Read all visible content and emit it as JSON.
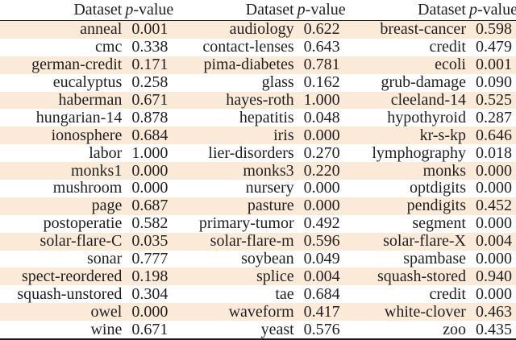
{
  "table": {
    "header": {
      "dataset": "Dataset",
      "pvalue_prefix": "p",
      "pvalue_suffix": "-value"
    },
    "rows": [
      [
        "anneal",
        "0.001",
        "audiology",
        "0.622",
        "breast-cancer",
        "0.598"
      ],
      [
        "cmc",
        "0.338",
        "contact-lenses",
        "0.643",
        "credit",
        "0.479"
      ],
      [
        "german-credit",
        "0.171",
        "pima-diabetes",
        "0.781",
        "ecoli",
        "0.001"
      ],
      [
        "eucalyptus",
        "0.258",
        "glass",
        "0.162",
        "grub-damage",
        "0.090"
      ],
      [
        "haberman",
        "0.671",
        "hayes-roth",
        "1.000",
        "cleeland-14",
        "0.525"
      ],
      [
        "hungarian-14",
        "0.878",
        "hepatitis",
        "0.048",
        "hypothyroid",
        "0.287"
      ],
      [
        "ionosphere",
        "0.684",
        "iris",
        "0.000",
        "kr-s-kp",
        "0.646"
      ],
      [
        "labor",
        "1.000",
        "lier-disorders",
        "0.270",
        "lymphography",
        "0.018"
      ],
      [
        "monks1",
        "0.000",
        "monks3",
        "0.220",
        "monks",
        "0.000"
      ],
      [
        "mushroom",
        "0.000",
        "nursery",
        "0.000",
        "optdigits",
        "0.000"
      ],
      [
        "page",
        "0.687",
        "pasture",
        "0.000",
        "pendigits",
        "0.452"
      ],
      [
        "postoperatie",
        "0.582",
        "primary-tumor",
        "0.492",
        "segment",
        "0.000"
      ],
      [
        "solar-flare-C",
        "0.035",
        "solar-flare-m",
        "0.596",
        "solar-flare-X",
        "0.004"
      ],
      [
        "sonar",
        "0.777",
        "soybean",
        "0.049",
        "spambase",
        "0.000"
      ],
      [
        "spect-reordered",
        "0.198",
        "splice",
        "0.004",
        "squash-stored",
        "0.940"
      ],
      [
        "squash-unstored",
        "0.304",
        "tae",
        "0.684",
        "credit",
        "0.000"
      ],
      [
        "owel",
        "0.000",
        "waveform",
        "0.417",
        "white-clover",
        "0.463"
      ],
      [
        "wine",
        "0.671",
        "yeast",
        "0.576",
        "zoo",
        "0.435"
      ]
    ],
    "colors": {
      "stripe": "#fcead9",
      "text": "#1f1f1f",
      "rule": "#1a1a1a"
    }
  }
}
